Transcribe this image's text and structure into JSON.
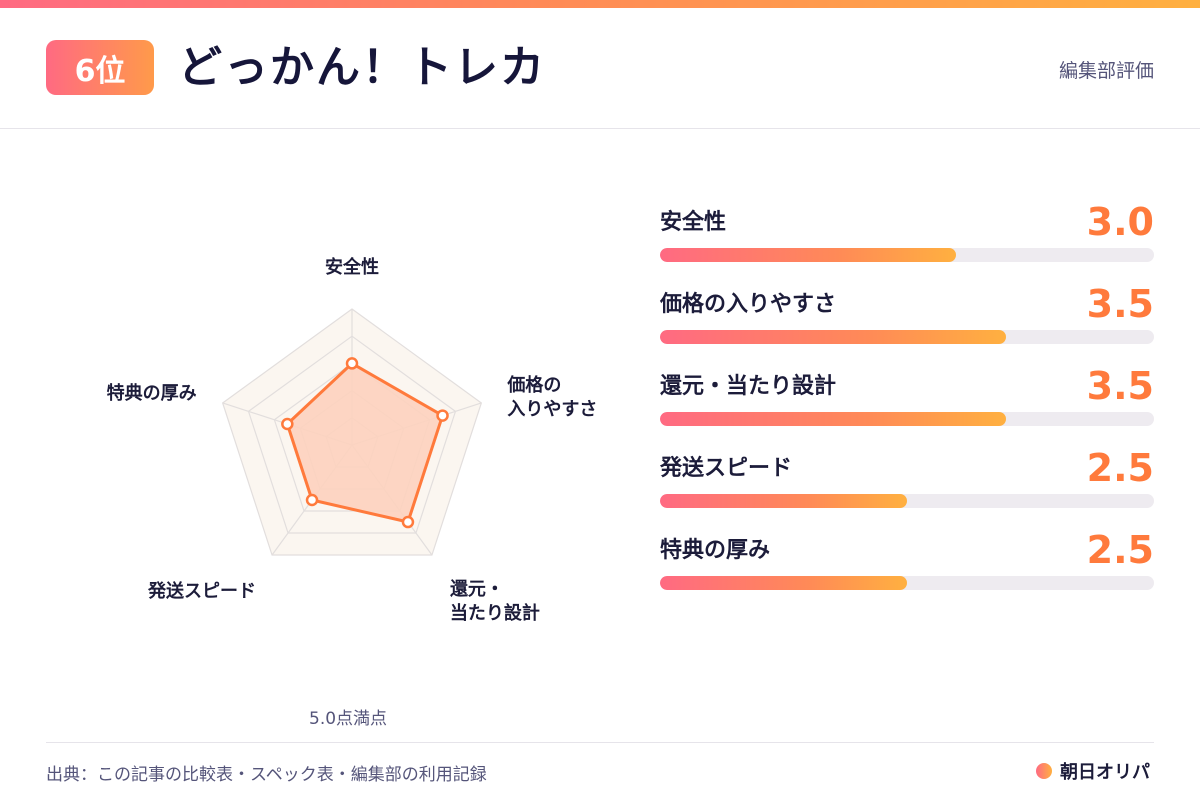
{
  "header": {
    "rank": "6位",
    "title": "どっかん！トレカ",
    "note": "編集部評価"
  },
  "chart_data": {
    "type": "radar",
    "max": 5.0,
    "scale_note": "5.0点満点",
    "axes": [
      {
        "label": "安全性",
        "label_lines": [
          "安全性"
        ],
        "value": 3.0,
        "value_text": "3.0"
      },
      {
        "label": "価格の入りやすさ",
        "label_lines": [
          "価格の",
          "入りやすさ"
        ],
        "value": 3.5,
        "value_text": "3.5"
      },
      {
        "label": "還元・当たり設計",
        "label_lines": [
          "還元・",
          "当たり設計"
        ],
        "value": 3.5,
        "value_text": "3.5"
      },
      {
        "label": "発送スピード",
        "label_lines": [
          "発送スピード"
        ],
        "value": 2.5,
        "value_text": "2.5"
      },
      {
        "label": "特典の厚み",
        "label_lines": [
          "特典の厚み"
        ],
        "value": 2.5,
        "value_text": "2.5"
      }
    ]
  },
  "footer": {
    "source": "出典：この記事の比較表・スペック表・編集部の利用記録",
    "brand": "朝日オリパ"
  },
  "colors": {
    "accent": "#ff7a3c",
    "gradient_start": "#ff6a82",
    "gradient_end": "#ffb040",
    "radar_fill": "#fdd2be",
    "radar_stroke": "#ff7a3c",
    "grid_fill": "#fbf6f0",
    "grid_stroke": "#e2dedd"
  }
}
